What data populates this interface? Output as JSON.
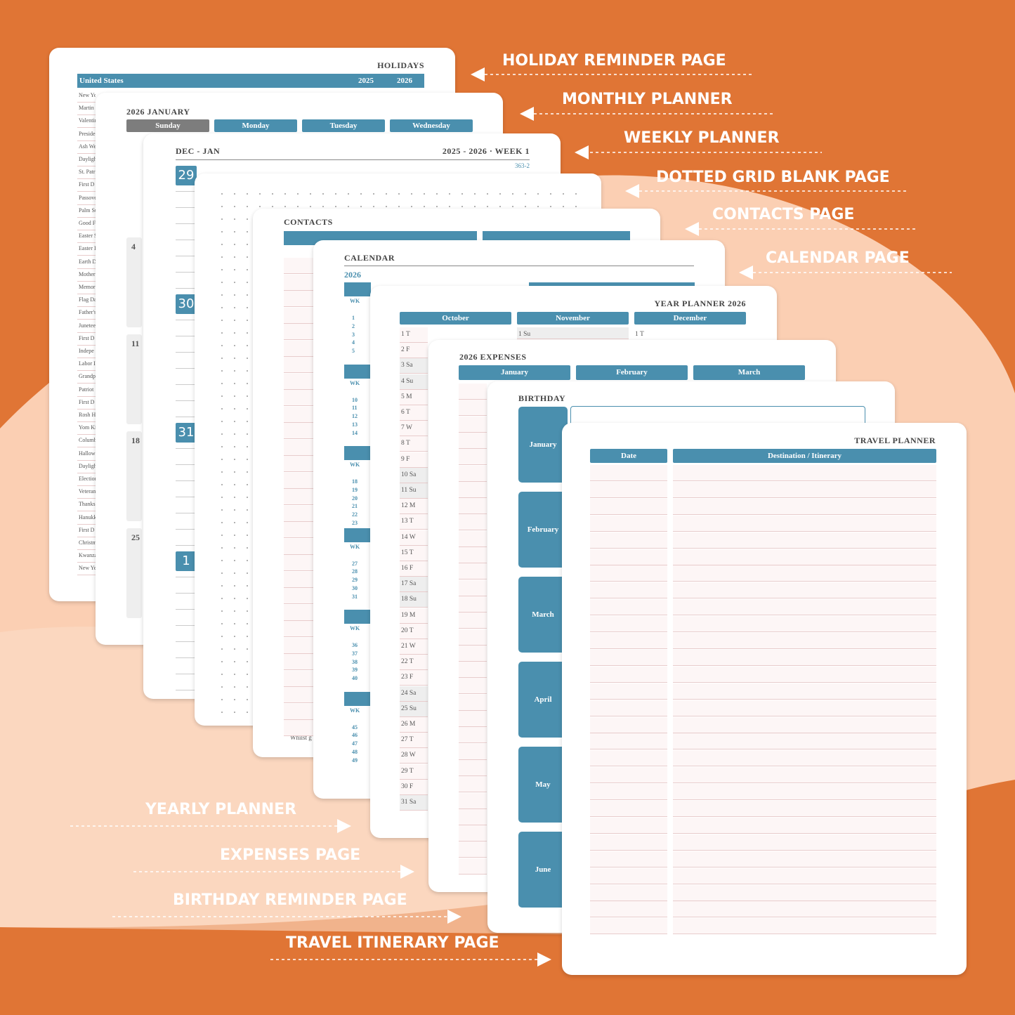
{
  "labels": {
    "right": [
      "HOLIDAY REMINDER PAGE",
      "MONTHLY PLANNER",
      "WEEKLY PLANNER",
      "DOTTED GRID BLANK PAGE",
      "CONTACTS PAGE",
      "CALENDAR PAGE"
    ],
    "left": [
      "YEARLY PLANNER",
      "EXPENSES PAGE",
      "BIRTHDAY REMINDER PAGE",
      "TRAVEL ITINERARY PAGE"
    ]
  },
  "holidays": {
    "title": "HOLIDAYS",
    "country": "United States",
    "years": [
      "2025",
      "2026"
    ],
    "items": [
      "New Year's",
      "Martin",
      "Valentin",
      "Preside",
      "Ash We",
      "Dayligh",
      "St. Patr",
      "First D",
      "Passove",
      "Palm Su",
      "Good F",
      "Easter S",
      "Easter I",
      "Earth D",
      "Mother",
      "Memor",
      "Flag Da",
      "Father's",
      "Junetee",
      "First D",
      "Indepe",
      "Labor I",
      "Grandp",
      "Patriot",
      "First D",
      "Rosh H",
      "Yom Ki",
      "Columb",
      "Hallow",
      "Dayligh",
      "Election",
      "Veteran",
      "Thanks",
      "Hanukk",
      "First D",
      "Christm",
      "Kwanza",
      "New Ye"
    ]
  },
  "monthly": {
    "title": "2026 JANUARY",
    "days": [
      "Sunday",
      "Monday",
      "Tuesday",
      "Wednesday"
    ],
    "dates": [
      "4",
      "11",
      "18",
      "25"
    ]
  },
  "weekly": {
    "title": "DEC - JAN",
    "week": "2025 - 2026 · WEEK 1",
    "range": "363-2",
    "dates": [
      "29",
      "30",
      "31",
      "1"
    ]
  },
  "contacts": {
    "title": "CONTACTS",
    "footer": "Whilst g"
  },
  "calendar": {
    "title": "CALENDAR",
    "year": "2026",
    "wk": "WK",
    "weeks": [
      [
        "1",
        "2",
        "3",
        "4",
        "5"
      ],
      [
        "10",
        "11",
        "12",
        "13",
        "14"
      ],
      [
        "18",
        "19",
        "20",
        "21",
        "22",
        "23"
      ],
      [
        "27",
        "28",
        "29",
        "30",
        "31"
      ],
      [
        "36",
        "37",
        "38",
        "39",
        "40"
      ],
      [
        "45",
        "46",
        "47",
        "48",
        "49"
      ]
    ]
  },
  "year_planner": {
    "title": "YEAR PLANNER 2026",
    "months": [
      "October",
      "November",
      "December"
    ],
    "october": [
      "1 T",
      "2 F",
      "3 Sa",
      "4 Su",
      "5 M",
      "6 T",
      "7 W",
      "8 T",
      "9 F",
      "10 Sa",
      "11 Su",
      "12 M",
      "13 T",
      "14 W",
      "15 T",
      "16 F",
      "17 Sa",
      "18 Su",
      "19 M",
      "20 T",
      "21 W",
      "22 T",
      "23 F",
      "24 Sa",
      "25 Su",
      "26 M",
      "27 T",
      "28 W",
      "29 T",
      "30 F",
      "31 Sa"
    ],
    "november_first": "1 Su",
    "december_first": "1 T"
  },
  "expenses": {
    "title": "2026 EXPENSES",
    "months": [
      "January",
      "February",
      "March"
    ]
  },
  "birthday": {
    "title": "BIRTHDAY",
    "months": [
      "January",
      "February",
      "March",
      "April",
      "May",
      "June"
    ]
  },
  "travel": {
    "title": "TRAVEL PLANNER",
    "columns": [
      "Date",
      "Destination / Itinerary"
    ]
  }
}
